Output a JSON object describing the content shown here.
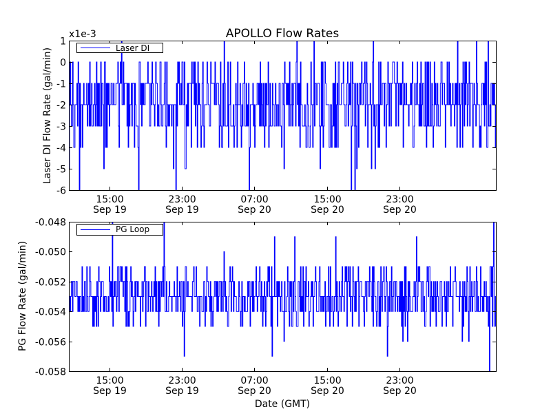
{
  "figure": {
    "title": "APOLLO Flow Rates",
    "xlabel": "Date (GMT)",
    "series_color": "#0000ff"
  },
  "chart_data": [
    {
      "type": "line",
      "title": "APOLLO Flow Rates",
      "ylabel": "Laser DI Flow Rate (gal/min)",
      "offset_label": "x1e-3",
      "legend": {
        "entries": [
          "Laser DI"
        ],
        "placement": "top-left"
      },
      "ylim": [
        -6,
        1
      ],
      "yticks": [
        1,
        0,
        -1,
        -2,
        -3,
        -4,
        -5,
        -6
      ],
      "ytick_labels": [
        "1",
        "0",
        "-1",
        "-2",
        "-3",
        "-4",
        "-5",
        "-6"
      ],
      "xlim": [
        "2012-09-19 10:30",
        "2012-09-21 09:40"
      ],
      "xticks": [
        {
          "time": "15:00",
          "date": "Sep 19"
        },
        {
          "time": "23:00",
          "date": "Sep 19"
        },
        {
          "time": "07:00",
          "date": "Sep 20"
        },
        {
          "time": "15:00",
          "date": "Sep 20"
        },
        {
          "time": "23:00",
          "date": "Sep 20"
        }
      ],
      "xtick_values": [
        "2012-09-19 15:00",
        "2012-09-19 23:00",
        "2012-09-20 07:00",
        "2012-09-20 15:00",
        "2012-09-20 23:00"
      ],
      "series": [
        {
          "name": "Laser DI",
          "levels": [
            0,
            -1,
            -2,
            -3,
            -4
          ],
          "level_weights": [
            0.12,
            0.28,
            0.3,
            0.2,
            0.1
          ],
          "spikes": [
            1,
            -5,
            -6
          ]
        }
      ]
    },
    {
      "type": "line",
      "ylabel": "PG Flow Rate (gal/min)",
      "legend": {
        "entries": [
          "PG Loop"
        ],
        "placement": "top-left"
      },
      "ylim": [
        -0.058,
        -0.048
      ],
      "yticks": [
        -0.048,
        -0.05,
        -0.052,
        -0.054,
        -0.056,
        -0.058
      ],
      "ytick_labels": [
        "-0.048",
        "-0.050",
        "-0.052",
        "-0.054",
        "-0.056",
        "-0.058"
      ],
      "xlim": [
        "2012-09-19 10:30",
        "2012-09-21 09:40"
      ],
      "xticks": [
        {
          "time": "15:00",
          "date": "Sep 19"
        },
        {
          "time": "23:00",
          "date": "Sep 19"
        },
        {
          "time": "07:00",
          "date": "Sep 20"
        },
        {
          "time": "15:00",
          "date": "Sep 20"
        },
        {
          "time": "23:00",
          "date": "Sep 20"
        }
      ],
      "xtick_values": [
        "2012-09-19 15:00",
        "2012-09-19 23:00",
        "2012-09-20 07:00",
        "2012-09-20 15:00",
        "2012-09-20 23:00"
      ],
      "series": [
        {
          "name": "PG Loop",
          "levels": [
            -0.051,
            -0.052,
            -0.053,
            -0.054,
            -0.055
          ],
          "level_weights": [
            0.1,
            0.25,
            0.32,
            0.23,
            0.1
          ],
          "spikes": [
            -0.048,
            -0.049,
            -0.05,
            -0.056,
            -0.057,
            -0.058
          ]
        }
      ]
    }
  ]
}
